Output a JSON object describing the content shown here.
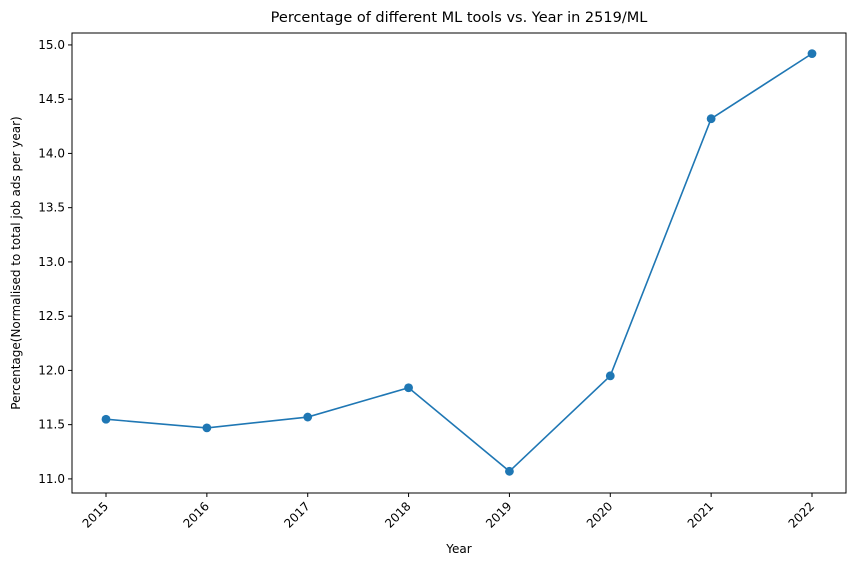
{
  "chart_data": {
    "type": "line",
    "title": "Percentage of different ML tools vs. Year in 2519/ML",
    "xlabel": "Year",
    "ylabel": "Percentage(Normalised to total job ads per year)",
    "x": [
      "2015",
      "2016",
      "2017",
      "2018",
      "2019",
      "2020",
      "2021",
      "2022"
    ],
    "series": [
      {
        "values": [
          11.55,
          11.47,
          11.57,
          11.84,
          11.07,
          11.95,
          14.32,
          14.92
        ],
        "color": "#1f77b4",
        "marker": "circle"
      }
    ],
    "yticks": [
      "11.0",
      "11.5",
      "12.0",
      "12.5",
      "13.0",
      "13.5",
      "14.0",
      "14.5",
      "15.0"
    ],
    "ylim": [
      10.87,
      15.11
    ],
    "xtick_rotation": 45,
    "grid": false,
    "legend": "none"
  }
}
